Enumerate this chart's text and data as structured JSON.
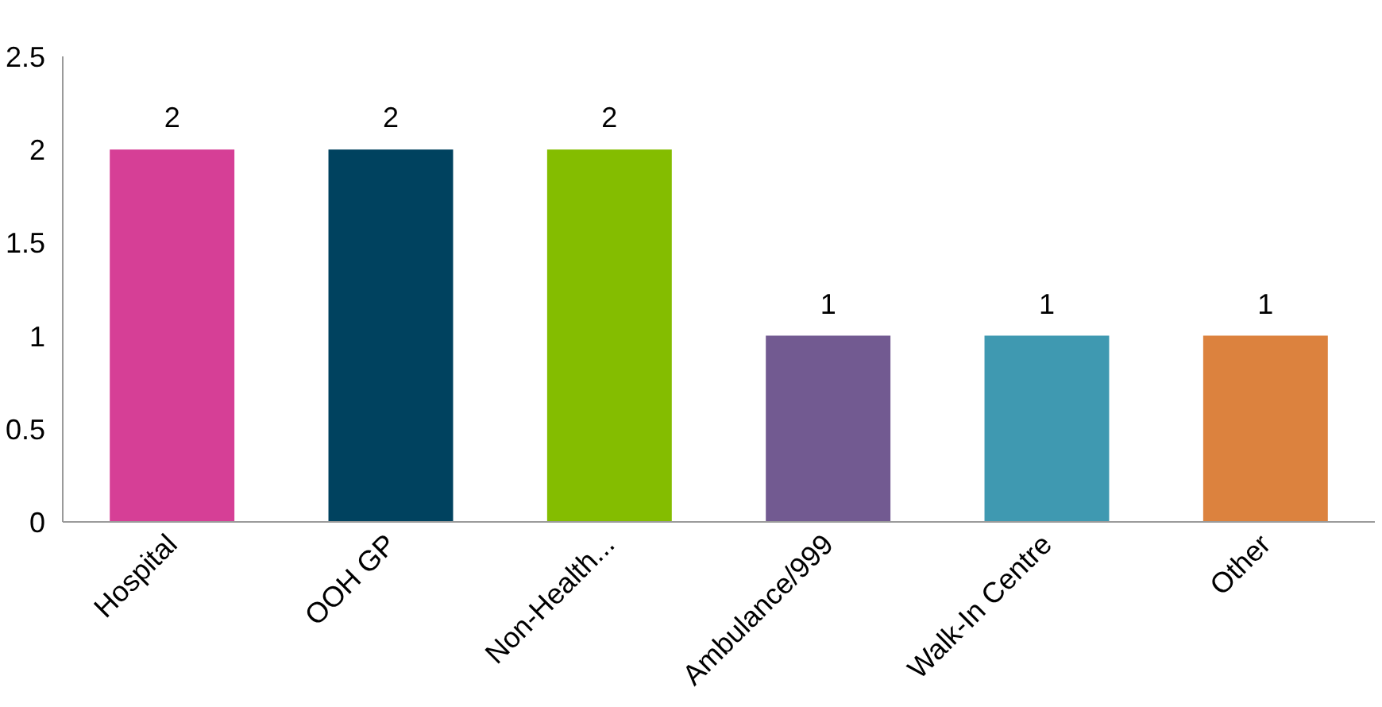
{
  "chart_data": {
    "type": "bar",
    "categories": [
      "Hospital",
      "OOH GP",
      "Non-Health...",
      "Ambulance/999",
      "Walk-In Centre",
      "Other"
    ],
    "values": [
      2,
      2,
      2,
      1,
      1,
      1
    ],
    "colors": [
      "#d63f96",
      "#00425f",
      "#84bd00",
      "#725a91",
      "#3f99b1",
      "#dc823e"
    ],
    "ylim": [
      0,
      2.5
    ],
    "yticks": [
      0,
      0.5,
      1,
      1.5,
      2,
      2.5
    ],
    "grid": false,
    "data_labels": true
  }
}
